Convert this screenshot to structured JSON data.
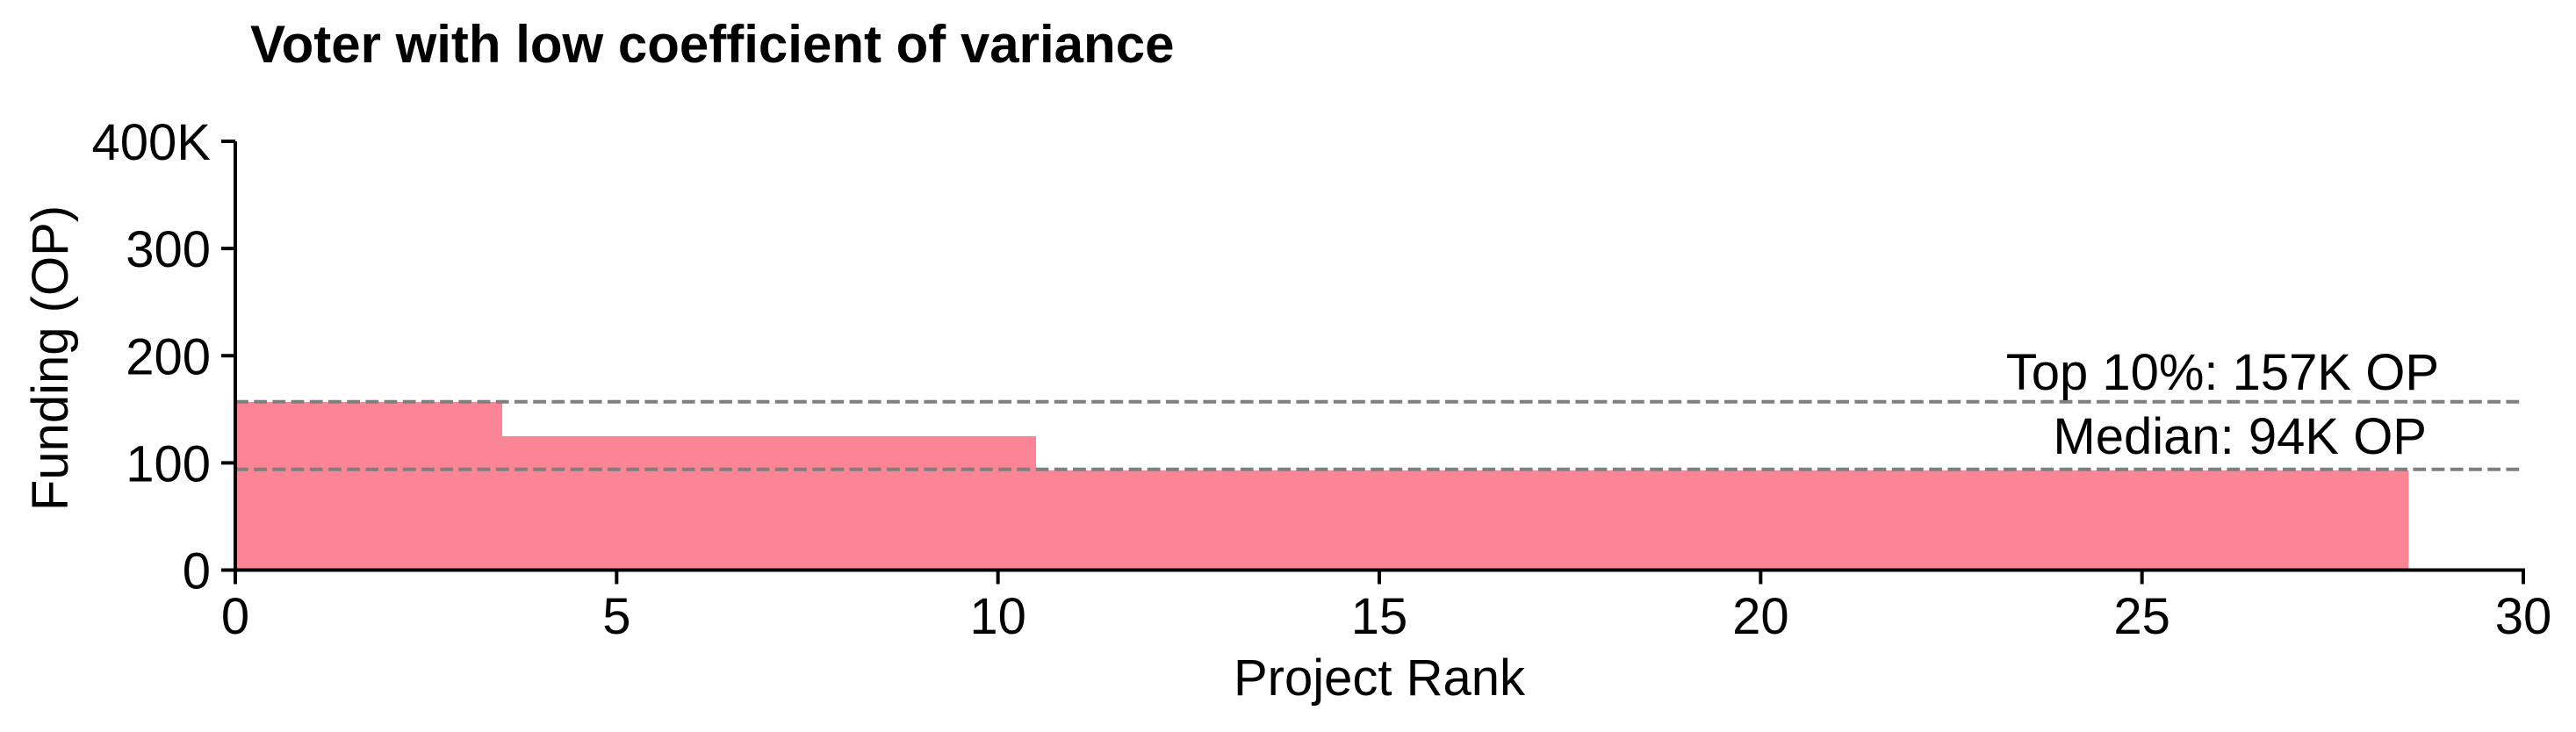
{
  "chart_data": {
    "type": "bar",
    "title": "Voter with low coefficient of variance",
    "xlabel": "Project Rank",
    "ylabel": "Funding (OP)",
    "xlim": [
      0,
      30
    ],
    "ylim_K_OP": [
      0,
      400
    ],
    "grid": false,
    "legend": false,
    "bar_width_data_units": 1,
    "categories_ranks": [
      0,
      1,
      2,
      3,
      4,
      5,
      6,
      7,
      8,
      9,
      10,
      11,
      12,
      13,
      14,
      15,
      16,
      17,
      18,
      19,
      20,
      21,
      22,
      23,
      24,
      25,
      26,
      27,
      28
    ],
    "values_K_OP": [
      157,
      157,
      157,
      157,
      125,
      125,
      125,
      125,
      125,
      125,
      125,
      93,
      93,
      93,
      93,
      93,
      93,
      93,
      93,
      93,
      93,
      93,
      93,
      93,
      93,
      93,
      93,
      93,
      93
    ],
    "x_ticks": [
      {
        "value": 0,
        "label": "0"
      },
      {
        "value": 5,
        "label": "5"
      },
      {
        "value": 10,
        "label": "10"
      },
      {
        "value": 15,
        "label": "15"
      },
      {
        "value": 20,
        "label": "20"
      },
      {
        "value": 25,
        "label": "25"
      },
      {
        "value": 30,
        "label": "30"
      }
    ],
    "y_ticks": [
      {
        "value": 0,
        "label": "0"
      },
      {
        "value": 100,
        "label": "100"
      },
      {
        "value": 200,
        "label": "200"
      },
      {
        "value": 300,
        "label": "300"
      },
      {
        "value": 400,
        "label": "400K"
      }
    ],
    "annotations": [
      {
        "id": "top10",
        "label": "Top 10%: 157K OP",
        "value_K_OP": 157
      },
      {
        "id": "median",
        "label": "Median: 94K OP",
        "value_K_OP": 94
      }
    ],
    "colors": {
      "bar": "#FA8594",
      "annotation_line": "#7F7F7F",
      "axis": "#000000",
      "text": "#000000",
      "background": "#FFFFFF"
    }
  }
}
